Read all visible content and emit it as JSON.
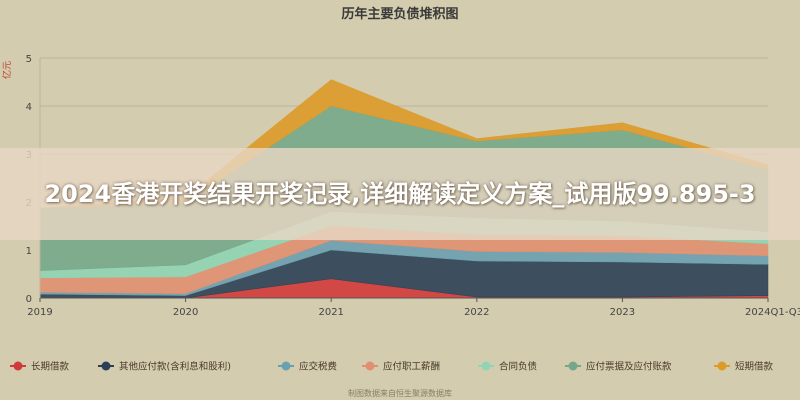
{
  "banner": {
    "headline": "2024香港开奖结果开奖记录,详细解读定义方案_试用版99.895-3"
  },
  "watermark": "制图数据来自恒生聚源数据库",
  "chart_data": {
    "type": "area",
    "stacked": true,
    "title": "历年主要负债堆积图",
    "ylabel": "亿元",
    "ylim": [
      0,
      5
    ],
    "yticks": [
      0,
      1,
      2,
      3,
      4,
      5
    ],
    "grid": true,
    "legend_position": "bottom",
    "categories": [
      "2019",
      "2020",
      "2021",
      "2022",
      "2023",
      "2024Q1-Q3"
    ],
    "series": [
      {
        "name": "长期借款",
        "color": "#d03a3a",
        "values": [
          0.0,
          0.0,
          0.4,
          0.02,
          0.02,
          0.05
        ]
      },
      {
        "name": "其他应付款(含利息和股利)",
        "color": "#2c4055",
        "values": [
          0.08,
          0.05,
          0.6,
          0.75,
          0.73,
          0.65
        ]
      },
      {
        "name": "应交税费",
        "color": "#6aa0b0",
        "values": [
          0.04,
          0.04,
          0.2,
          0.2,
          0.2,
          0.18
        ]
      },
      {
        "name": "应付职工薪酬",
        "color": "#e09070",
        "values": [
          0.3,
          0.35,
          0.3,
          0.35,
          0.35,
          0.25
        ]
      },
      {
        "name": "合同负债",
        "color": "#8fd4b4",
        "values": [
          0.15,
          0.25,
          0.3,
          0.35,
          0.3,
          0.25
        ]
      },
      {
        "name": "应付票据及应付账款",
        "color": "#75a88a",
        "values": [
          1.3,
          1.3,
          2.2,
          1.6,
          1.9,
          1.3
        ]
      },
      {
        "name": "短期借款",
        "color": "#dc9a28",
        "values": [
          0.0,
          0.1,
          0.55,
          0.05,
          0.15,
          0.1
        ]
      }
    ]
  }
}
